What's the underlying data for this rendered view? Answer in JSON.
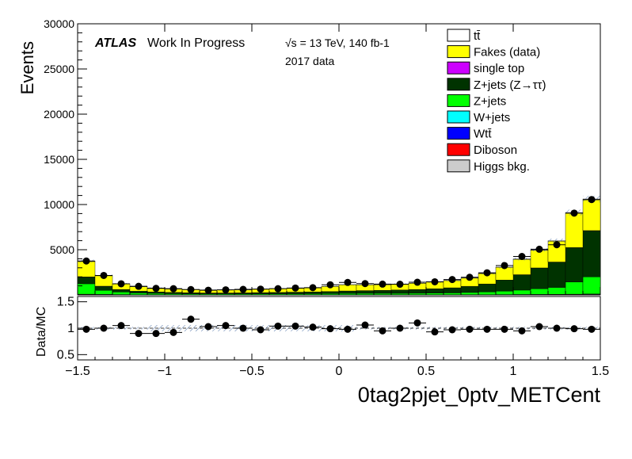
{
  "chart_data": [
    {
      "type": "histogram-stack",
      "ylabel": "Events",
      "xlim": [
        -1.5,
        1.5
      ],
      "ylim": [
        0,
        30000
      ],
      "yticks": [
        5000,
        10000,
        15000,
        20000,
        25000,
        30000
      ],
      "atlas_label": "ATLAS",
      "atlas_sub": "Work In Progress",
      "energy_label": "√s = 13 TeV, 140 fb-1",
      "data_label": "2017 data",
      "bin_edges": [
        -1.5,
        -1.4,
        -1.3,
        -1.2,
        -1.1,
        -1.0,
        -0.9,
        -0.8,
        -0.7,
        -0.6,
        -0.5,
        -0.4,
        -0.3,
        -0.2,
        -0.1,
        0.0,
        0.1,
        0.2,
        0.3,
        0.4,
        0.5,
        0.6,
        0.7,
        0.8,
        0.9,
        1.0,
        1.1,
        1.2,
        1.3,
        1.4,
        1.5
      ],
      "series": [
        {
          "name": "Higgs bkg.",
          "color": "#cccccc",
          "values": [
            30,
            20,
            15,
            10,
            10,
            8,
            8,
            8,
            8,
            8,
            8,
            8,
            8,
            8,
            8,
            8,
            8,
            8,
            8,
            8,
            8,
            8,
            10,
            10,
            15,
            20,
            20,
            25,
            30,
            40
          ]
        },
        {
          "name": "Diboson",
          "color": "#ff0000",
          "values": [
            20,
            15,
            10,
            8,
            8,
            6,
            6,
            6,
            6,
            6,
            6,
            6,
            6,
            6,
            6,
            6,
            6,
            6,
            6,
            6,
            6,
            6,
            8,
            8,
            10,
            12,
            15,
            18,
            20,
            25
          ]
        },
        {
          "name": "Wtt̄",
          "color": "#0000ff",
          "values": [
            10,
            8,
            5,
            4,
            4,
            3,
            3,
            3,
            3,
            3,
            3,
            3,
            3,
            3,
            3,
            3,
            3,
            3,
            3,
            3,
            3,
            3,
            4,
            4,
            5,
            6,
            8,
            9,
            10,
            12
          ]
        },
        {
          "name": "W+jets",
          "color": "#00ffff",
          "values": [
            20,
            15,
            10,
            8,
            8,
            6,
            6,
            6,
            6,
            6,
            6,
            6,
            6,
            6,
            6,
            6,
            6,
            6,
            6,
            6,
            6,
            6,
            8,
            8,
            10,
            12,
            15,
            18,
            20,
            25
          ]
        },
        {
          "name": "Z+jets",
          "color": "#00ff00",
          "values": [
            1150,
            450,
            280,
            180,
            140,
            110,
            90,
            80,
            80,
            80,
            90,
            90,
            100,
            110,
            120,
            140,
            150,
            150,
            150,
            160,
            180,
            200,
            240,
            300,
            380,
            480,
            620,
            760,
            1350,
            1900
          ]
        },
        {
          "name": "Z+jets (Z→ττ)",
          "color": "#003300",
          "values": [
            750,
            450,
            280,
            200,
            160,
            140,
            120,
            110,
            110,
            120,
            140,
            160,
            180,
            200,
            230,
            270,
            300,
            330,
            370,
            420,
            480,
            560,
            680,
            880,
            1220,
            1700,
            2300,
            2800,
            3800,
            5100
          ]
        },
        {
          "name": "single top",
          "color": "#cc00ff",
          "values": [
            10,
            8,
            5,
            4,
            4,
            3,
            3,
            3,
            3,
            3,
            3,
            3,
            3,
            3,
            3,
            3,
            3,
            3,
            3,
            3,
            3,
            3,
            4,
            4,
            5,
            6,
            8,
            9,
            10,
            12
          ]
        },
        {
          "name": "Fakes (data)",
          "color": "#ffff00",
          "values": [
            1700,
            1150,
            600,
            500,
            420,
            380,
            350,
            330,
            330,
            340,
            380,
            400,
            420,
            440,
            560,
            690,
            640,
            620,
            640,
            680,
            730,
            800,
            900,
            1150,
            1400,
            1700,
            1950,
            2300,
            3800,
            3400
          ]
        },
        {
          "name": "tt̄",
          "color": "#ffffff",
          "values": [
            60,
            40,
            30,
            20,
            20,
            15,
            15,
            15,
            15,
            15,
            15,
            15,
            15,
            15,
            15,
            15,
            15,
            15,
            15,
            15,
            15,
            15,
            20,
            20,
            30,
            40,
            50,
            60,
            80,
            100
          ]
        }
      ],
      "data_points": {
        "x": [
          -1.45,
          -1.35,
          -1.25,
          -1.15,
          -1.05,
          -0.95,
          -0.85,
          -0.75,
          -0.65,
          -0.55,
          -0.45,
          -0.35,
          -0.25,
          -0.15,
          -0.05,
          0.05,
          0.15,
          0.25,
          0.35,
          0.45,
          0.55,
          0.65,
          0.75,
          0.85,
          0.95,
          1.05,
          1.15,
          1.25,
          1.35,
          1.45
        ],
        "y": [
          3750,
          2150,
          1230,
          950,
          720,
          690,
          590,
          520,
          560,
          610,
          640,
          690,
          760,
          800,
          1120,
          1380,
          1250,
          1190,
          1180,
          1400,
          1450,
          1700,
          1950,
          2450,
          3250,
          4250,
          5050,
          5550,
          9050,
          10550
        ]
      },
      "legend_position": "top-right"
    },
    {
      "type": "ratio",
      "ylabel": "Data/MC",
      "xlabel": "0tag2pjet_0ptv_METCent",
      "ylim": [
        0.4,
        1.6
      ],
      "yticks": [
        0.5,
        1,
        1.5
      ],
      "xticks": [
        -1.5,
        -1,
        -0.5,
        0,
        0.5,
        1,
        1.5
      ],
      "xtick_labels": [
        "−1.5",
        "−1",
        "−0.5",
        "0",
        "0.5",
        "1",
        "1.5"
      ],
      "x": [
        -1.45,
        -1.35,
        -1.25,
        -1.15,
        -1.05,
        -0.95,
        -0.85,
        -0.75,
        -0.65,
        -0.55,
        -0.45,
        -0.35,
        -0.25,
        -0.15,
        -0.05,
        0.05,
        0.15,
        0.25,
        0.35,
        0.45,
        0.55,
        0.65,
        0.75,
        0.85,
        0.95,
        1.05,
        1.15,
        1.25,
        1.35,
        1.45
      ],
      "y": [
        0.98,
        1.0,
        1.05,
        0.9,
        0.9,
        0.92,
        1.17,
        1.03,
        1.05,
        1.0,
        0.97,
        1.04,
        1.04,
        1.02,
        0.99,
        0.98,
        1.06,
        0.95,
        1.0,
        1.1,
        0.93,
        0.97,
        0.98,
        0.98,
        0.98,
        0.95,
        1.03,
        1.0,
        0.99,
        0.98
      ]
    }
  ]
}
